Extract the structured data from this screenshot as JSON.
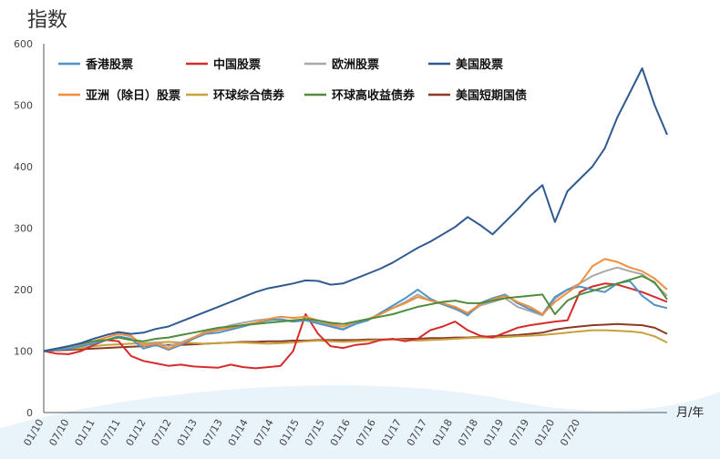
{
  "chart_data": {
    "type": "line",
    "ylabel": "指数",
    "xunit": "月/年",
    "ylim": [
      0,
      600
    ],
    "yticks": [
      0,
      100,
      200,
      300,
      400,
      500,
      600
    ],
    "x_tick_labels": [
      "01/10",
      "07/10",
      "01/11",
      "07/11",
      "01/12",
      "07/12",
      "01/13",
      "07/13",
      "01/14",
      "07/14",
      "01/15",
      "07/15",
      "01/16",
      "07/16",
      "01/17",
      "07/17",
      "01/18",
      "07/18",
      "01/19",
      "07/19",
      "01/20",
      "07/20"
    ],
    "legend_position": "top-left, inside plot",
    "series": [
      {
        "name": "香港股票",
        "color": "#4e93c4",
        "values": [
          100,
          102,
          104,
          108,
          112,
          118,
          124,
          120,
          104,
          110,
          102,
          110,
          120,
          128,
          130,
          135,
          140,
          146,
          150,
          152,
          148,
          150,
          145,
          140,
          135,
          144,
          150,
          162,
          174,
          186,
          200,
          185,
          176,
          170,
          158,
          178,
          186,
          192,
          178,
          168,
          160,
          188,
          200,
          205,
          200,
          196,
          210,
          214,
          190,
          175,
          170
        ]
      },
      {
        "name": "中国股票",
        "color": "#d62b2b",
        "values": [
          100,
          96,
          95,
          100,
          110,
          118,
          116,
          92,
          84,
          80,
          76,
          78,
          75,
          74,
          73,
          78,
          74,
          72,
          74,
          76,
          100,
          160,
          128,
          108,
          105,
          110,
          112,
          118,
          120,
          116,
          120,
          134,
          140,
          148,
          134,
          125,
          122,
          130,
          138,
          142,
          145,
          148,
          150,
          196,
          205,
          210,
          208,
          202,
          196,
          188,
          180
        ]
      },
      {
        "name": "欧洲股票",
        "color": "#a8a8a8",
        "values": [
          100,
          104,
          106,
          110,
          115,
          122,
          128,
          124,
          110,
          114,
          108,
          114,
          122,
          132,
          136,
          142,
          146,
          150,
          152,
          150,
          148,
          150,
          148,
          142,
          136,
          146,
          152,
          160,
          170,
          180,
          192,
          182,
          176,
          168,
          160,
          174,
          180,
          186,
          172,
          165,
          158,
          185,
          200,
          210,
          222,
          230,
          236,
          230,
          225,
          210,
          190
        ]
      },
      {
        "name": "美国股票",
        "color": "#2e5a91",
        "values": [
          100,
          104,
          108,
          113,
          120,
          126,
          131,
          128,
          130,
          136,
          140,
          148,
          156,
          164,
          172,
          180,
          188,
          196,
          202,
          206,
          210,
          215,
          214,
          208,
          210,
          218,
          226,
          234,
          244,
          256,
          268,
          278,
          290,
          302,
          318,
          305,
          290,
          310,
          330,
          352,
          370,
          310,
          360,
          380,
          400,
          430,
          480,
          520,
          560,
          500,
          452
        ]
      },
      {
        "name": "亚洲（除日）股票",
        "color": "#f28d3c",
        "values": [
          100,
          104,
          108,
          112,
          116,
          122,
          128,
          125,
          108,
          112,
          104,
          112,
          122,
          130,
          134,
          138,
          142,
          146,
          152,
          156,
          154,
          156,
          150,
          144,
          140,
          148,
          152,
          160,
          170,
          178,
          188,
          182,
          178,
          172,
          162,
          176,
          184,
          190,
          180,
          172,
          160,
          180,
          195,
          210,
          238,
          250,
          245,
          236,
          230,
          218,
          200
        ]
      },
      {
        "name": "环球综合债券",
        "color": "#c8a03c",
        "values": [
          100,
          102,
          104,
          105,
          108,
          110,
          111,
          112,
          113,
          114,
          115,
          114,
          113,
          112,
          113,
          114,
          114,
          113,
          112,
          113,
          114,
          116,
          117,
          116,
          115,
          116,
          117,
          118,
          119,
          118,
          117,
          118,
          119,
          120,
          121,
          122,
          122,
          123,
          124,
          125,
          126,
          128,
          130,
          132,
          134,
          134,
          133,
          132,
          130,
          124,
          114
        ]
      },
      {
        "name": "环球高收益债券",
        "color": "#4f8c3c",
        "values": [
          100,
          104,
          108,
          112,
          116,
          118,
          122,
          118,
          116,
          120,
          122,
          126,
          130,
          134,
          138,
          140,
          142,
          144,
          146,
          148,
          150,
          152,
          150,
          146,
          144,
          148,
          152,
          156,
          160,
          166,
          172,
          176,
          180,
          182,
          178,
          178,
          182,
          186,
          188,
          190,
          192,
          160,
          182,
          192,
          198,
          204,
          210,
          216,
          222,
          212,
          184
        ]
      },
      {
        "name": "美国短期国债",
        "color": "#8b3a26",
        "values": [
          100,
          101,
          102,
          103,
          104,
          105,
          106,
          107,
          108,
          109,
          110,
          110,
          111,
          112,
          113,
          114,
          115,
          115,
          116,
          116,
          117,
          117,
          118,
          118,
          118,
          118,
          119,
          119,
          119,
          120,
          120,
          121,
          121,
          122,
          122,
          123,
          124,
          125,
          126,
          128,
          130,
          135,
          138,
          140,
          142,
          143,
          144,
          143,
          142,
          138,
          128
        ]
      }
    ]
  }
}
